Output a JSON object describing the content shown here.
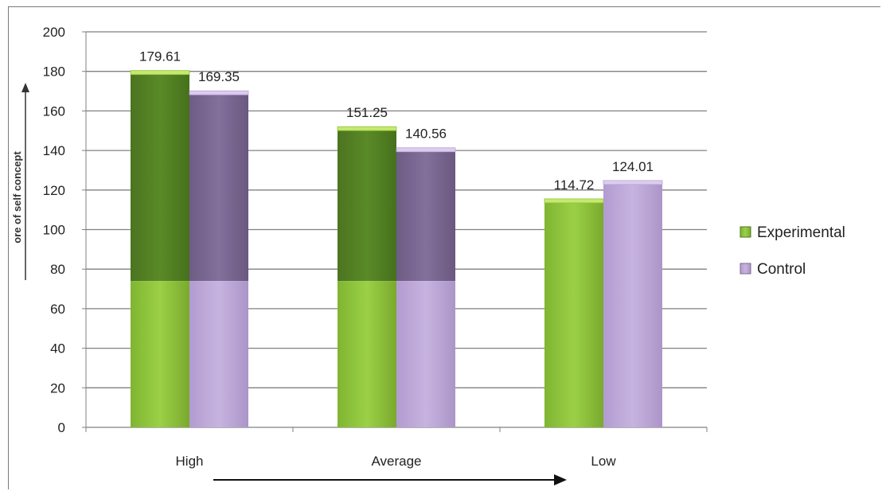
{
  "chart_data": {
    "type": "bar",
    "categories": [
      "High",
      "Average",
      "Low"
    ],
    "series": [
      {
        "name": "Experimental",
        "values": [
          179.61,
          151.25,
          114.72
        ]
      },
      {
        "name": "Control",
        "values": [
          169.35,
          140.56,
          124.01
        ]
      }
    ],
    "data_labels": [
      [
        "179.61",
        "151.25",
        "114.72"
      ],
      [
        "169.35",
        "140.56",
        "124.01"
      ]
    ],
    "ylabel": "ore of self concept",
    "xlabel": "",
    "ylim": [
      0,
      200
    ],
    "yticks": [
      0,
      20,
      40,
      60,
      80,
      100,
      120,
      140,
      160,
      180,
      200
    ],
    "grid": true,
    "legend_position": "right",
    "colors": {
      "Experimental": "#8fc43a",
      "Experimental_dark": "#4f7a1f",
      "Control": "#b9a2d6",
      "Control_dark": "#7c6892",
      "grid": "#808080",
      "axis": "#808080"
    }
  }
}
